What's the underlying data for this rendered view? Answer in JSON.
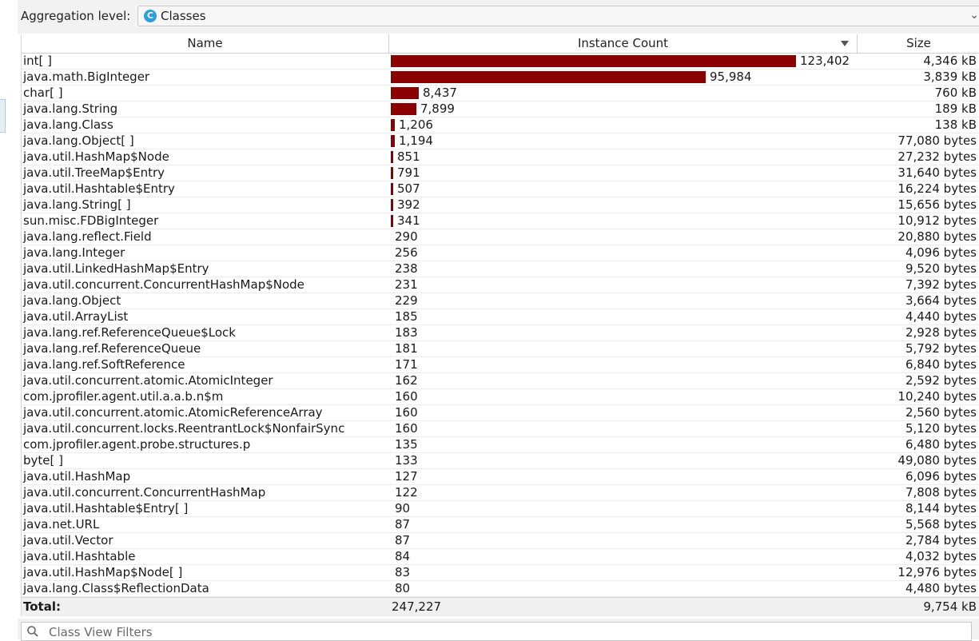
{
  "aggregation": {
    "label": "Aggregation level:",
    "value": "Classes",
    "icon_letter": "C"
  },
  "columns": {
    "name": "Name",
    "count": "Instance Count",
    "size": "Size"
  },
  "bar_color": "#8b0000",
  "rows": [
    {
      "name": "int[ ]",
      "count": "123,402",
      "count_num": 123402,
      "size": "4,346 kB"
    },
    {
      "name": "java.math.BigInteger",
      "count": "95,984",
      "count_num": 95984,
      "size": "3,839 kB"
    },
    {
      "name": "char[ ]",
      "count": "8,437",
      "count_num": 8437,
      "size": "760 kB"
    },
    {
      "name": "java.lang.String",
      "count": "7,899",
      "count_num": 7899,
      "size": "189 kB"
    },
    {
      "name": "java.lang.Class",
      "count": "1,206",
      "count_num": 1206,
      "size": "138 kB"
    },
    {
      "name": "java.lang.Object[ ]",
      "count": "1,194",
      "count_num": 1194,
      "size": "77,080 bytes"
    },
    {
      "name": "java.util.HashMap$Node",
      "count": "851",
      "count_num": 851,
      "size": "27,232 bytes"
    },
    {
      "name": "java.util.TreeMap$Entry",
      "count": "791",
      "count_num": 791,
      "size": "31,640 bytes"
    },
    {
      "name": "java.util.Hashtable$Entry",
      "count": "507",
      "count_num": 507,
      "size": "16,224 bytes"
    },
    {
      "name": "java.lang.String[ ]",
      "count": "392",
      "count_num": 392,
      "size": "15,656 bytes"
    },
    {
      "name": "sun.misc.FDBigInteger",
      "count": "341",
      "count_num": 341,
      "size": "10,912 bytes"
    },
    {
      "name": "java.lang.reflect.Field",
      "count": "290",
      "count_num": 290,
      "size": "20,880 bytes"
    },
    {
      "name": "java.lang.Integer",
      "count": "256",
      "count_num": 256,
      "size": "4,096 bytes"
    },
    {
      "name": "java.util.LinkedHashMap$Entry",
      "count": "238",
      "count_num": 238,
      "size": "9,520 bytes"
    },
    {
      "name": "java.util.concurrent.ConcurrentHashMap$Node",
      "count": "231",
      "count_num": 231,
      "size": "7,392 bytes"
    },
    {
      "name": "java.lang.Object",
      "count": "229",
      "count_num": 229,
      "size": "3,664 bytes"
    },
    {
      "name": "java.util.ArrayList",
      "count": "185",
      "count_num": 185,
      "size": "4,440 bytes"
    },
    {
      "name": "java.lang.ref.ReferenceQueue$Lock",
      "count": "183",
      "count_num": 183,
      "size": "2,928 bytes"
    },
    {
      "name": "java.lang.ref.ReferenceQueue",
      "count": "181",
      "count_num": 181,
      "size": "5,792 bytes"
    },
    {
      "name": "java.lang.ref.SoftReference",
      "count": "171",
      "count_num": 171,
      "size": "6,840 bytes"
    },
    {
      "name": "java.util.concurrent.atomic.AtomicInteger",
      "count": "162",
      "count_num": 162,
      "size": "2,592 bytes"
    },
    {
      "name": "com.jprofiler.agent.util.a.a.b.n$m",
      "count": "160",
      "count_num": 160,
      "size": "10,240 bytes"
    },
    {
      "name": "java.util.concurrent.atomic.AtomicReferenceArray",
      "count": "160",
      "count_num": 160,
      "size": "2,560 bytes"
    },
    {
      "name": "java.util.concurrent.locks.ReentrantLock$NonfairSync",
      "count": "160",
      "count_num": 160,
      "size": "5,120 bytes"
    },
    {
      "name": "com.jprofiler.agent.probe.structures.p",
      "count": "135",
      "count_num": 135,
      "size": "6,480 bytes"
    },
    {
      "name": "byte[ ]",
      "count": "133",
      "count_num": 133,
      "size": "49,080 bytes"
    },
    {
      "name": "java.util.HashMap",
      "count": "127",
      "count_num": 127,
      "size": "6,096 bytes"
    },
    {
      "name": "java.util.concurrent.ConcurrentHashMap",
      "count": "122",
      "count_num": 122,
      "size": "7,808 bytes"
    },
    {
      "name": "java.util.Hashtable$Entry[ ]",
      "count": "90",
      "count_num": 90,
      "size": "8,144 bytes"
    },
    {
      "name": "java.net.URL",
      "count": "87",
      "count_num": 87,
      "size": "5,568 bytes"
    },
    {
      "name": "java.util.Vector",
      "count": "87",
      "count_num": 87,
      "size": "2,784 bytes"
    },
    {
      "name": "java.util.Hashtable",
      "count": "84",
      "count_num": 84,
      "size": "4,032 bytes"
    },
    {
      "name": "java.util.HashMap$Node[ ]",
      "count": "83",
      "count_num": 83,
      "size": "12,976 bytes"
    },
    {
      "name": "java.lang.Class$ReflectionData",
      "count": "80",
      "count_num": 80,
      "size": "4,480 bytes"
    }
  ],
  "total": {
    "label": "Total:",
    "count": "247,227",
    "size": "9,754 kB"
  },
  "filter": {
    "placeholder": "Class View Filters"
  }
}
